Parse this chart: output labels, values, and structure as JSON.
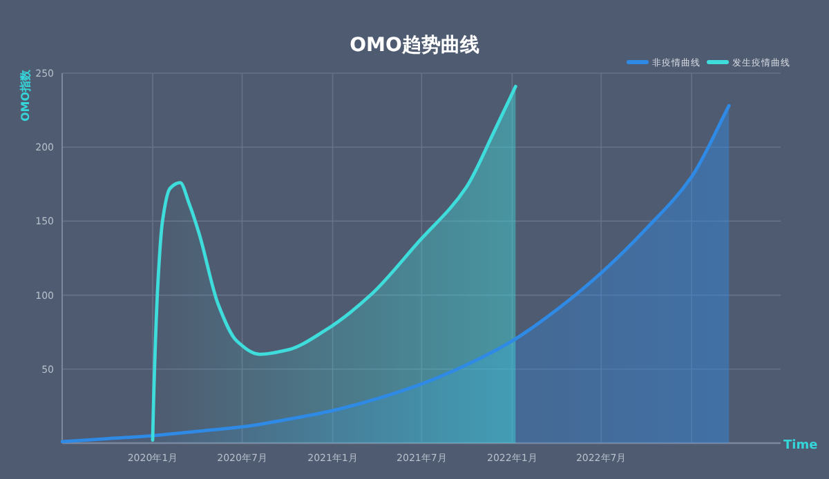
{
  "chart_data": {
    "type": "area",
    "title": "OMO趋势曲线",
    "ylabel": "OMO指数",
    "xlabel": "Time",
    "xlim": [
      "2019-07-01",
      "2023-07-01"
    ],
    "xticks": [
      {
        "value": "2019-07-01",
        "label": null
      },
      {
        "value": "2020-01-01",
        "label": "2020年1月"
      },
      {
        "value": "2020-07-01",
        "label": "2020年7月"
      },
      {
        "value": "2021-01-01",
        "label": "2021年1月"
      },
      {
        "value": "2021-07-01",
        "label": "2021年7月"
      },
      {
        "value": "2022-01-01",
        "label": "2022年1月"
      },
      {
        "value": "2022-07-01",
        "label": "2022年7月"
      },
      {
        "value": "2023-01-01",
        "label": null
      }
    ],
    "ylim": [
      0,
      250
    ],
    "yticks": [
      50,
      100,
      150,
      200,
      250
    ],
    "grid": true,
    "legend": "top right",
    "series": [
      {
        "name": "非疫情曲线",
        "color": "#2f8ae6",
        "x": [
          "2019-07-01",
          "2019-10-01",
          "2020-01-01",
          "2020-04-01",
          "2020-07-01",
          "2020-10-01",
          "2021-01-01",
          "2021-04-01",
          "2021-07-01",
          "2021-10-01",
          "2022-01-01",
          "2022-04-01",
          "2022-07-01",
          "2022-10-01",
          "2023-01-01",
          "2023-03-18"
        ],
        "values": [
          1,
          3,
          5,
          8,
          11,
          16,
          22,
          30,
          40,
          53,
          69,
          90,
          115,
          145,
          180,
          228
        ]
      },
      {
        "name": "发生疫情曲线",
        "color": "#3fdcdc",
        "x": [
          "2020-01-01",
          "2020-01-03",
          "2020-01-12",
          "2020-01-21",
          "2020-02-05",
          "2020-02-26",
          "2020-03-15",
          "2020-04-05",
          "2020-05-13",
          "2020-06-20",
          "2020-08-06",
          "2020-10-02",
          "2020-12-16",
          "2021-03-19",
          "2021-06-22",
          "2021-09-30",
          "2021-11-26",
          "2022-01-08"
        ],
        "values": [
          2,
          30,
          110,
          150,
          172,
          176,
          162,
          141,
          94,
          69,
          60,
          63,
          76,
          100,
          135,
          173,
          211,
          241
        ]
      }
    ]
  }
}
